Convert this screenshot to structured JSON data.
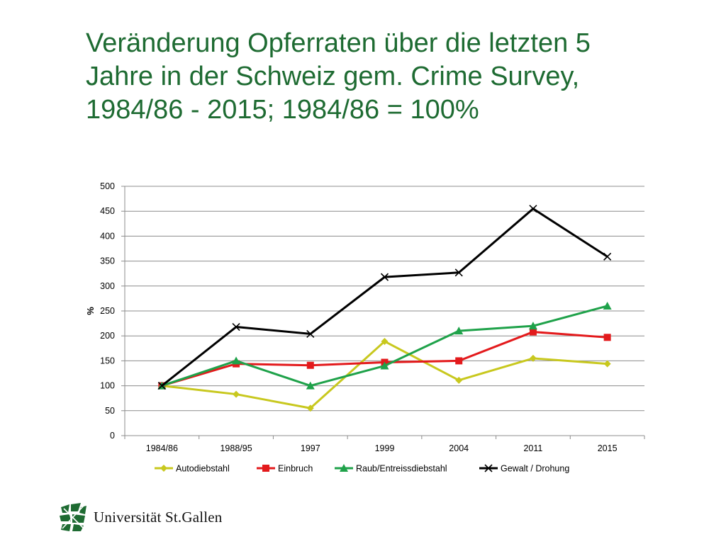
{
  "slide": {
    "title_lines": [
      "Veränderung Opferraten über die letzten 5",
      "Jahre in der Schweiz gem. Crime Survey,",
      "1984/86 - 2015; 1984/86 = 100%"
    ]
  },
  "logo": {
    "text": "Universität St.Gallen",
    "icon": "university-logo-icon",
    "color": "#1e6b32"
  },
  "chart_data": {
    "type": "line",
    "ylabel": "%",
    "xlabel": "",
    "ylim": [
      0,
      500
    ],
    "yticks": [
      "0",
      "50",
      "100",
      "150",
      "200",
      "250",
      "300",
      "350",
      "400",
      "450",
      "500"
    ],
    "ytick_values": [
      0,
      50,
      100,
      150,
      200,
      250,
      300,
      350,
      400,
      450,
      500
    ],
    "categories": [
      "1984/86",
      "1988/95",
      "1997",
      "1999",
      "2004",
      "2011",
      "2015"
    ],
    "grid": true,
    "legend_position": "bottom",
    "series": [
      {
        "name": "Autodiebstahl",
        "color": "#c8c81e",
        "marker": "diamond",
        "values": [
          100,
          83,
          55,
          189,
          111,
          155,
          144
        ]
      },
      {
        "name": "Einbruch",
        "color": "#e31a1c",
        "marker": "square",
        "values": [
          100,
          144,
          141,
          147,
          150,
          208,
          197
        ]
      },
      {
        "name": "Raub/Entreissdiebstahl",
        "color": "#1fa24a",
        "marker": "triangle",
        "values": [
          100,
          150,
          100,
          140,
          210,
          220,
          260
        ]
      },
      {
        "name": "Gewalt / Drohung",
        "color": "#000000",
        "marker": "x",
        "values": [
          100,
          218,
          204,
          318,
          327,
          455,
          359
        ]
      }
    ]
  }
}
